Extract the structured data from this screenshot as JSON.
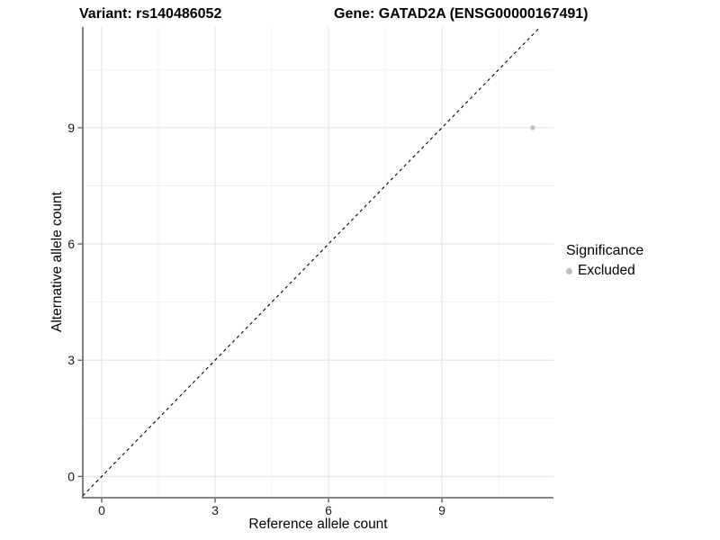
{
  "header": {
    "variant_title": "Variant: rs140486052",
    "gene_title": "Gene: GATAD2A (ENSG00000167491)"
  },
  "chart_data": {
    "type": "scatter",
    "xlabel": "Reference allele count",
    "ylabel": "Alternative allele count",
    "xlim": [
      -0.5,
      11.95
    ],
    "ylim": [
      -0.55,
      11.6
    ],
    "x_major_ticks": [
      0,
      3,
      6,
      9
    ],
    "y_major_ticks": [
      0,
      3,
      6,
      9
    ],
    "x_minor_ticks": [
      1.5,
      4.5,
      7.5,
      10.5
    ],
    "y_minor_ticks": [
      1.5,
      4.5,
      7.5,
      10.5
    ],
    "grid": "major+minor",
    "identity_line": {
      "style": "dashed",
      "color": "#000000"
    },
    "series": [
      {
        "name": "Excluded",
        "color": "#bebebe",
        "points": [
          {
            "x": 11.4,
            "y": 9
          }
        ]
      }
    ],
    "legend": {
      "title": "Significance",
      "position": "right",
      "entries": [
        {
          "label": "Excluded",
          "color": "#bebebe"
        }
      ]
    },
    "style": {
      "background": "#ffffff",
      "major_grid_color": "#e4e4e4",
      "minor_grid_color": "#f2f2f2",
      "axis_line_color": "#3c3c3c",
      "tick_label_color": "#1a1a1a"
    }
  }
}
